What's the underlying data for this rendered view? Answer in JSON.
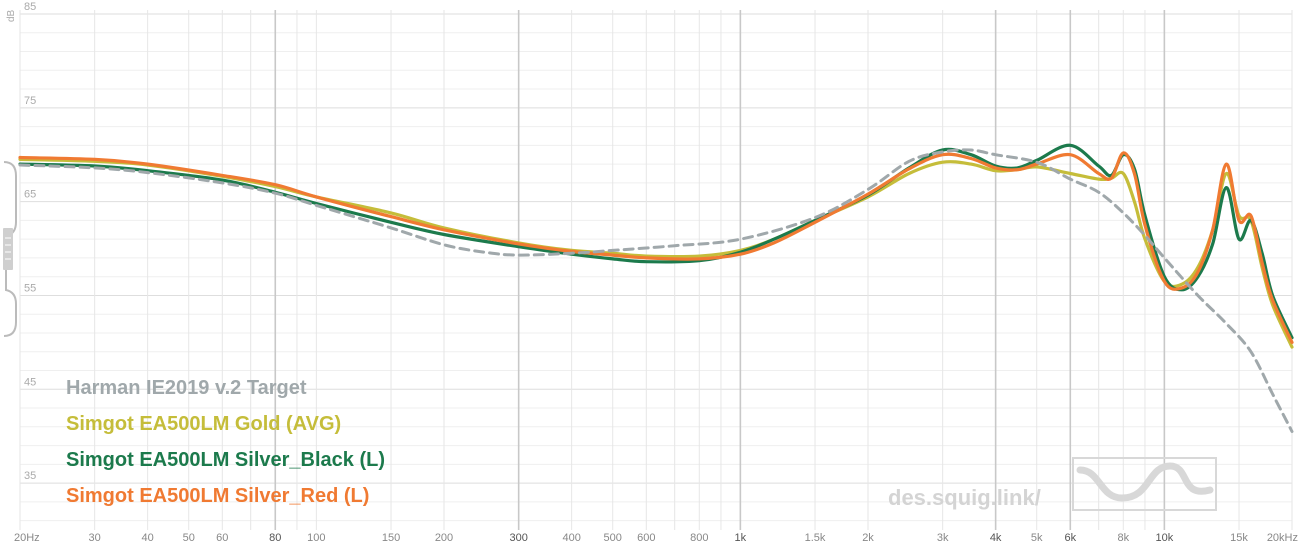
{
  "chart_data": {
    "type": "line",
    "ylabel": "dB",
    "x_scale": "log",
    "xlim": [
      20,
      20000
    ],
    "ylim": [
      30,
      85
    ],
    "grid": true,
    "legend_placement": "bottom-left",
    "x_ticks": [
      {
        "value": 20,
        "label": "20Hz",
        "strong": false
      },
      {
        "value": 30,
        "label": "30",
        "strong": false
      },
      {
        "value": 40,
        "label": "40",
        "strong": false
      },
      {
        "value": 50,
        "label": "50",
        "strong": false
      },
      {
        "value": 60,
        "label": "60",
        "strong": false
      },
      {
        "value": 80,
        "label": "80",
        "strong": true
      },
      {
        "value": 100,
        "label": "100",
        "strong": false
      },
      {
        "value": 150,
        "label": "150",
        "strong": false
      },
      {
        "value": 200,
        "label": "200",
        "strong": false
      },
      {
        "value": 300,
        "label": "300",
        "strong": true
      },
      {
        "value": 400,
        "label": "400",
        "strong": false
      },
      {
        "value": 500,
        "label": "500",
        "strong": false
      },
      {
        "value": 600,
        "label": "600",
        "strong": false
      },
      {
        "value": 800,
        "label": "800",
        "strong": false
      },
      {
        "value": 1000,
        "label": "1k",
        "strong": true
      },
      {
        "value": 1500,
        "label": "1.5k",
        "strong": false
      },
      {
        "value": 2000,
        "label": "2k",
        "strong": false
      },
      {
        "value": 3000,
        "label": "3k",
        "strong": false
      },
      {
        "value": 4000,
        "label": "4k",
        "strong": true
      },
      {
        "value": 5000,
        "label": "5k",
        "strong": false
      },
      {
        "value": 6000,
        "label": "6k",
        "strong": true
      },
      {
        "value": 8000,
        "label": "8k",
        "strong": false
      },
      {
        "value": 10000,
        "label": "10k",
        "strong": true
      },
      {
        "value": 15000,
        "label": "15k",
        "strong": false
      },
      {
        "value": 20000,
        "label": "20kHz",
        "strong": false
      }
    ],
    "y_ticks": [
      85,
      75,
      65,
      55,
      45,
      35
    ],
    "series": [
      {
        "name": "Harman IE2019 v.2 Target",
        "color": "#a0a8ab",
        "dashed": true,
        "x": [
          20,
          30,
          40,
          60,
          80,
          100,
          150,
          200,
          250,
          300,
          400,
          500,
          700,
          1000,
          1500,
          2000,
          2500,
          3000,
          3500,
          4000,
          5000,
          6000,
          7000,
          8000,
          9000,
          10000,
          12000,
          14000,
          16000,
          18000,
          20000
        ],
        "y": [
          68.9,
          68.6,
          68.1,
          67.0,
          65.9,
          64.6,
          62.2,
          60.4,
          59.6,
          59.3,
          59.5,
          59.8,
          60.3,
          61.0,
          63.3,
          66.3,
          69.3,
          70.3,
          70.5,
          70.0,
          69.2,
          67.4,
          66.0,
          63.8,
          61.4,
          59.0,
          55.0,
          52.0,
          49.0,
          44.5,
          40.5
        ]
      },
      {
        "name": "Simgot EA500LM Gold (AVG)",
        "color": "#c5bd3a",
        "dashed": false,
        "x": [
          20,
          30,
          40,
          60,
          80,
          100,
          150,
          200,
          300,
          400,
          500,
          600,
          800,
          1000,
          1200,
          1500,
          2000,
          2500,
          3000,
          3500,
          4000,
          4500,
          5000,
          6000,
          7000,
          7500,
          8000,
          8500,
          9000,
          10000,
          11000,
          12000,
          13000,
          14000,
          15000,
          16000,
          17000,
          18000,
          20000
        ],
        "y": [
          69.5,
          69.3,
          68.9,
          67.7,
          66.6,
          65.5,
          63.8,
          62.2,
          60.6,
          59.8,
          59.5,
          59.2,
          59.2,
          59.8,
          61.0,
          63.0,
          65.5,
          68.0,
          69.2,
          69.0,
          68.3,
          68.4,
          68.7,
          68.0,
          67.4,
          67.5,
          68.0,
          65.0,
          61.0,
          56.5,
          56.2,
          58.0,
          62.0,
          68.0,
          63.5,
          63.0,
          58.0,
          54.0,
          49.5
        ]
      },
      {
        "name": "Simgot EA500LM Silver_Black (L)",
        "color": "#1c7a4c",
        "dashed": false,
        "x": [
          20,
          30,
          40,
          60,
          80,
          100,
          150,
          200,
          300,
          400,
          500,
          600,
          800,
          1000,
          1200,
          1500,
          2000,
          2500,
          3000,
          3500,
          4000,
          4500,
          5000,
          6000,
          7000,
          7500,
          8000,
          8500,
          9000,
          10000,
          11000,
          12000,
          13000,
          14000,
          15000,
          16000,
          17000,
          18000,
          20000
        ],
        "y": [
          69.0,
          68.8,
          68.3,
          67.3,
          66.0,
          64.8,
          62.8,
          61.5,
          60.2,
          59.4,
          58.9,
          58.6,
          58.7,
          59.6,
          61.0,
          63.0,
          65.7,
          68.6,
          70.5,
          70.0,
          68.8,
          68.6,
          69.4,
          71.0,
          68.8,
          67.8,
          70.0,
          68.5,
          63.5,
          57.0,
          55.6,
          57.0,
          60.5,
          66.5,
          61.0,
          63.0,
          59.5,
          55.0,
          50.5
        ]
      },
      {
        "name": "Simgot EA500LM Silver_Red (L)",
        "color": "#f07a32",
        "dashed": false,
        "x": [
          20,
          30,
          40,
          60,
          80,
          100,
          150,
          200,
          300,
          400,
          500,
          600,
          800,
          1000,
          1200,
          1500,
          2000,
          2500,
          3000,
          3500,
          4000,
          4500,
          5000,
          6000,
          7000,
          7500,
          8000,
          8500,
          9000,
          10000,
          11000,
          12000,
          13000,
          14000,
          15000,
          16000,
          17000,
          18000,
          20000
        ],
        "y": [
          69.7,
          69.5,
          69.0,
          67.8,
          66.8,
          65.5,
          63.4,
          62.0,
          60.5,
          59.7,
          59.3,
          59.0,
          58.9,
          59.4,
          60.6,
          62.8,
          65.8,
          68.5,
          70.0,
          69.6,
          68.6,
          68.4,
          69.0,
          70.0,
          68.0,
          67.5,
          70.2,
          68.0,
          62.5,
          56.5,
          55.8,
          57.5,
          62.0,
          69.0,
          63.0,
          63.5,
          58.5,
          54.5,
          50.0
        ]
      }
    ]
  },
  "watermark": {
    "text": "des.squig.link/"
  },
  "colors": {
    "grid": "#e6e6e6",
    "grid_strong": "#c8c8c8",
    "grid_label": "#888888",
    "handle": "#bbbbbb"
  }
}
